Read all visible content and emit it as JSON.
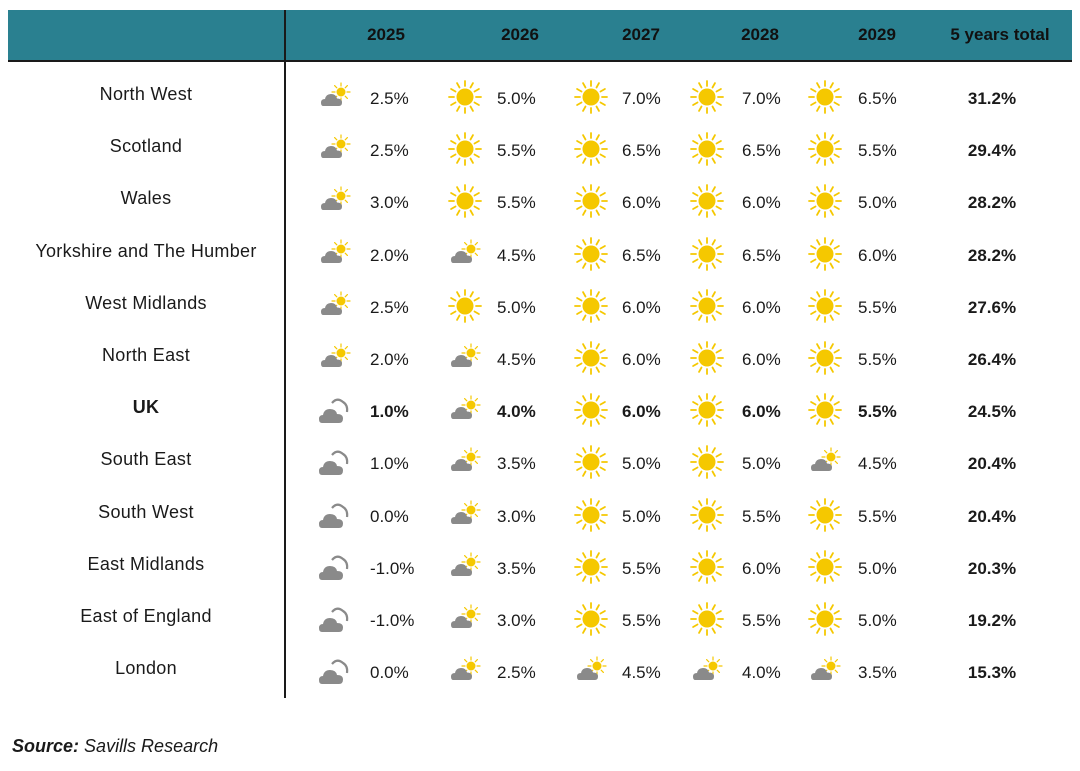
{
  "chart_data": {
    "type": "table",
    "columns": [
      "2025",
      "2026",
      "2027",
      "2028",
      "2029",
      "5 years total"
    ],
    "rows": [
      {
        "region": "North West",
        "values": [
          "2.5%",
          "5.0%",
          "7.0%",
          "7.0%",
          "6.5%"
        ],
        "icons": [
          "sun-cloud-icon",
          "sun-icon",
          "sun-icon",
          "sun-icon",
          "sun-icon"
        ],
        "total": "31.2%",
        "bold": false
      },
      {
        "region": "Scotland",
        "values": [
          "2.5%",
          "5.5%",
          "6.5%",
          "6.5%",
          "5.5%"
        ],
        "icons": [
          "sun-cloud-icon",
          "sun-icon",
          "sun-icon",
          "sun-icon",
          "sun-icon"
        ],
        "total": "29.4%",
        "bold": false
      },
      {
        "region": "Wales",
        "values": [
          "3.0%",
          "5.5%",
          "6.0%",
          "6.0%",
          "5.0%"
        ],
        "icons": [
          "sun-cloud-icon",
          "sun-icon",
          "sun-icon",
          "sun-icon",
          "sun-icon"
        ],
        "total": "28.2%",
        "bold": false
      },
      {
        "region": "Yorkshire and The Humber",
        "values": [
          "2.0%",
          "4.5%",
          "6.5%",
          "6.5%",
          "6.0%"
        ],
        "icons": [
          "sun-cloud-icon",
          "sun-cloud-icon",
          "sun-icon",
          "sun-icon",
          "sun-icon"
        ],
        "total": "28.2%",
        "bold": false
      },
      {
        "region": "West Midlands",
        "values": [
          "2.5%",
          "5.0%",
          "6.0%",
          "6.0%",
          "5.5%"
        ],
        "icons": [
          "sun-cloud-icon",
          "sun-icon",
          "sun-icon",
          "sun-icon",
          "sun-icon"
        ],
        "total": "27.6%",
        "bold": false
      },
      {
        "region": "North East",
        "values": [
          "2.0%",
          "4.5%",
          "6.0%",
          "6.0%",
          "5.5%"
        ],
        "icons": [
          "sun-cloud-icon",
          "sun-cloud-icon",
          "sun-icon",
          "sun-icon",
          "sun-icon"
        ],
        "total": "26.4%",
        "bold": false
      },
      {
        "region": "UK",
        "values": [
          "1.0%",
          "4.0%",
          "6.0%",
          "6.0%",
          "5.5%"
        ],
        "icons": [
          "cloud-icon",
          "sun-cloud-icon",
          "sun-icon",
          "sun-icon",
          "sun-icon"
        ],
        "total": "24.5%",
        "bold": true
      },
      {
        "region": "South East",
        "values": [
          "1.0%",
          "3.5%",
          "5.0%",
          "5.0%",
          "4.5%"
        ],
        "icons": [
          "cloud-icon",
          "sun-cloud-icon",
          "sun-icon",
          "sun-icon",
          "sun-cloud-icon"
        ],
        "total": "20.4%",
        "bold": false
      },
      {
        "region": "South West",
        "values": [
          "0.0%",
          "3.0%",
          "5.0%",
          "5.5%",
          "5.5%"
        ],
        "icons": [
          "cloud-icon",
          "sun-cloud-icon",
          "sun-icon",
          "sun-icon",
          "sun-icon"
        ],
        "total": "20.4%",
        "bold": false
      },
      {
        "region": "East Midlands",
        "values": [
          "-1.0%",
          "3.5%",
          "5.5%",
          "6.0%",
          "5.0%"
        ],
        "icons": [
          "cloud-icon",
          "sun-cloud-icon",
          "sun-icon",
          "sun-icon",
          "sun-icon"
        ],
        "total": "20.3%",
        "bold": false
      },
      {
        "region": "East of England",
        "values": [
          "-1.0%",
          "3.0%",
          "5.5%",
          "5.5%",
          "5.0%"
        ],
        "icons": [
          "cloud-icon",
          "sun-cloud-icon",
          "sun-icon",
          "sun-icon",
          "sun-icon"
        ],
        "total": "19.2%",
        "bold": false
      },
      {
        "region": "London",
        "values": [
          "0.0%",
          "2.5%",
          "4.5%",
          "4.0%",
          "3.5%"
        ],
        "icons": [
          "cloud-icon",
          "sun-cloud-icon",
          "sun-cloud-icon",
          "sun-cloud-icon",
          "sun-cloud-icon"
        ],
        "total": "15.3%",
        "bold": false
      }
    ]
  },
  "source": {
    "label": "Source:",
    "text": "Savills Research"
  },
  "colors": {
    "header": "#2a8090",
    "sun": "#f5c800",
    "cloud": "#8a8a8a"
  }
}
